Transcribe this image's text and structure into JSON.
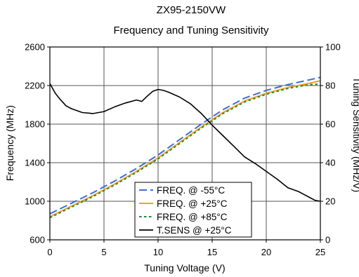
{
  "chart_data": {
    "type": "line",
    "title": "ZX95-2150VW",
    "subtitle": "Frequency and Tuning Sensitivity",
    "xlabel": "Tuning Voltage (V)",
    "ylabel": "Frequency (MHz)",
    "y2label": "Tuning Sensitivity (MHz/V)",
    "xlim": [
      0,
      25
    ],
    "ylim": [
      600,
      2600
    ],
    "y2lim": [
      0,
      100
    ],
    "xticks": [
      "0",
      "5",
      "10",
      "15",
      "20",
      "25"
    ],
    "yticks": [
      "600",
      "1000",
      "1400",
      "1800",
      "2200",
      "2600"
    ],
    "y2ticks": [
      "0",
      "20",
      "40",
      "60",
      "80",
      "100"
    ],
    "grid": true,
    "legend_position": "bottom-center",
    "series": [
      {
        "name": "FREQ. @ -55°C",
        "axis": "left",
        "color": "#3a6fd8",
        "dash": "long-dash",
        "x": [
          0,
          2,
          4,
          6,
          8,
          10,
          12,
          14,
          16,
          18,
          20,
          22,
          24,
          25
        ],
        "y": [
          870,
          980,
          1090,
          1210,
          1340,
          1480,
          1640,
          1800,
          1950,
          2070,
          2150,
          2210,
          2260,
          2285
        ]
      },
      {
        "name": "FREQ. @ +25°C",
        "axis": "left",
        "color": "#f7a020",
        "dash": "solid",
        "x": [
          0,
          2,
          4,
          6,
          8,
          10,
          12,
          14,
          16,
          18,
          20,
          22,
          24,
          25
        ],
        "y": [
          840,
          950,
          1060,
          1180,
          1310,
          1450,
          1610,
          1770,
          1920,
          2040,
          2120,
          2180,
          2225,
          2250
        ]
      },
      {
        "name": "FREQ. @ +85°C",
        "axis": "left",
        "color": "#1f8a3a",
        "dash": "dotted",
        "x": [
          0,
          2,
          4,
          6,
          8,
          10,
          12,
          14,
          16,
          18,
          20,
          22,
          24,
          25
        ],
        "y": [
          830,
          940,
          1050,
          1170,
          1300,
          1440,
          1600,
          1760,
          1910,
          2030,
          2110,
          2170,
          2210,
          2215
        ]
      },
      {
        "name": "T.SENS @ +25°C",
        "axis": "right",
        "color": "#000000",
        "dash": "solid",
        "x": [
          0,
          0.5,
          1,
          1.5,
          2,
          3,
          4,
          5,
          6,
          7,
          8,
          8.5,
          9,
          9.5,
          10,
          10.5,
          11,
          12,
          13,
          14,
          15,
          16,
          17,
          18,
          19,
          20,
          21,
          22,
          23,
          24,
          24.5,
          25
        ],
        "y": [
          81,
          76,
          72.5,
          69.5,
          68,
          66,
          65.5,
          66.5,
          69,
          71,
          72.5,
          71.8,
          74.5,
          77,
          78,
          77.5,
          76.5,
          74,
          70.5,
          65.5,
          59.5,
          54,
          48.5,
          43,
          39.5,
          35.5,
          31.5,
          27,
          25,
          22,
          20.5,
          20
        ]
      }
    ]
  }
}
